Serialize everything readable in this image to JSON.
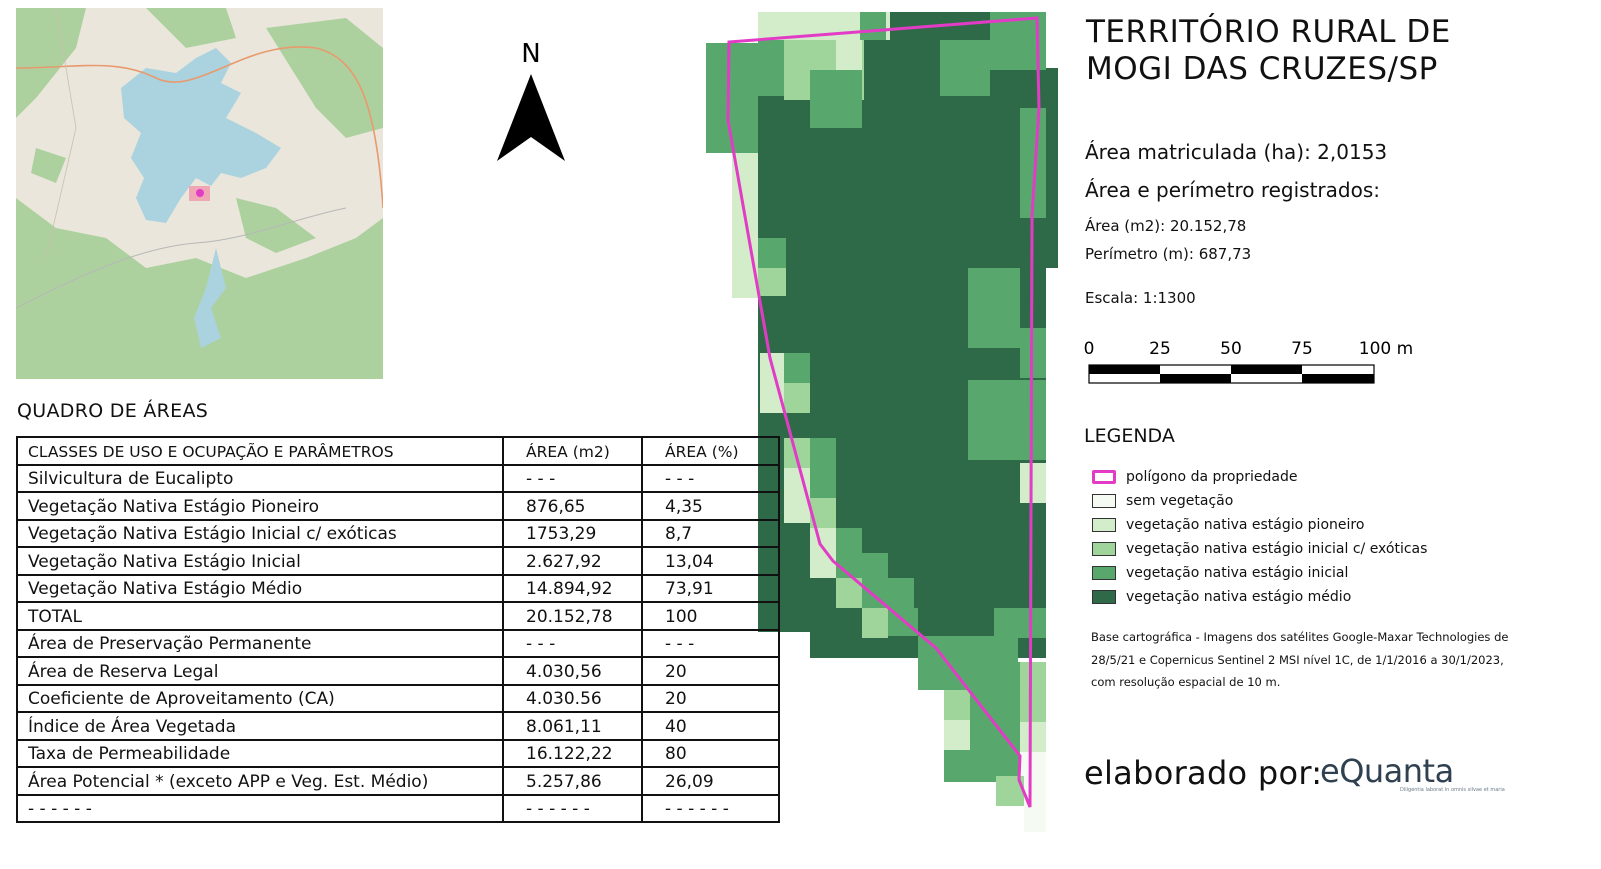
{
  "north_label": "N",
  "quadro": {
    "title": "QUADRO DE ÁREAS",
    "headers": [
      "CLASSES DE USO E OCUPAÇÃO E PARÂMETROS",
      "ÁREA (m2)",
      "ÁREA (%)"
    ],
    "rows": [
      [
        "Silvicultura de Eucalipto",
        "- - -",
        "- - -"
      ],
      [
        "Vegetação Nativa Estágio Pioneiro",
        "876,65",
        "4,35"
      ],
      [
        "Vegetação Nativa Estágio Inicial  c/ exóticas",
        "1753,29",
        "8,7"
      ],
      [
        "Vegetação Nativa Estágio Inicial",
        "2.627,92",
        "13,04"
      ],
      [
        "Vegetação Nativa Estágio Médio",
        "14.894,92",
        "73,91"
      ],
      [
        "TOTAL",
        "20.152,78",
        "100"
      ],
      [
        "Área de Preservação Permanente",
        "- - -",
        "- - -"
      ],
      [
        "Área de Reserva Legal",
        "4.030,56",
        "20"
      ],
      [
        "Coeficiente de Aproveitamento (CA)",
        "4.030.56",
        "20"
      ],
      [
        "Índice de Área Vegetada",
        "8.061,11",
        "40"
      ],
      [
        "Taxa de Permeabilidade",
        "16.122,22",
        "80"
      ],
      [
        "Área Potencial * (exceto APP e Veg. Est. Médio)",
        "5.257,86",
        "26,09"
      ],
      [
        "- - - - - -",
        "- - - - - -",
        "- - - - - -"
      ]
    ]
  },
  "title_line1": "TERRITÓRIO RURAL DE",
  "title_line2": "MOGI DAS CRUZES/SP",
  "area_matriculada": "Área matriculada (ha): 2,0153",
  "area_registrada": "Área e perímetro registrados:",
  "area_m2": "Área (m2): 20.152,78",
  "perimetro": "Perímetro (m): 687,73",
  "escala": "Escala: 1:1300",
  "scale_labels": [
    "0",
    "25",
    "50",
    "75",
    "100 m"
  ],
  "legend": {
    "title": "LEGENDA",
    "items": [
      {
        "label": "polígono da propriedade",
        "color": "#e23bc6",
        "outline": true
      },
      {
        "label": "sem vegetação",
        "color": "#f5fbf3"
      },
      {
        "label": "vegetação nativa estágio pioneiro",
        "color": "#d3ecca"
      },
      {
        "label": "vegetação nativa estágio inicial c/ exóticas",
        "color": "#9fd59a"
      },
      {
        "label": "vegetação nativa estágio inicial",
        "color": "#58a86e"
      },
      {
        "label": "vegetação nativa estágio médio",
        "color": "#2f6a48"
      }
    ]
  },
  "base_cartografica": [
    "Base cartográfica - Imagens dos satélites Google-Maxar Technologies de",
    "28/5/21 e Copernicus Sentinel 2 MSI nível 1C, de 1/1/2016 a 30/1/2023,",
    "com resolução espacial de 10 m."
  ],
  "elaborado_por": "elaborado por:",
  "logo_text": "eQuanta",
  "logo_tagline": "Diligentia laborat in omnis silvae et maria",
  "colors": {
    "polygon": "#e23bc6",
    "map_water": "#aad3df",
    "map_land": "#f2efe9",
    "map_forest": "#add19e"
  }
}
